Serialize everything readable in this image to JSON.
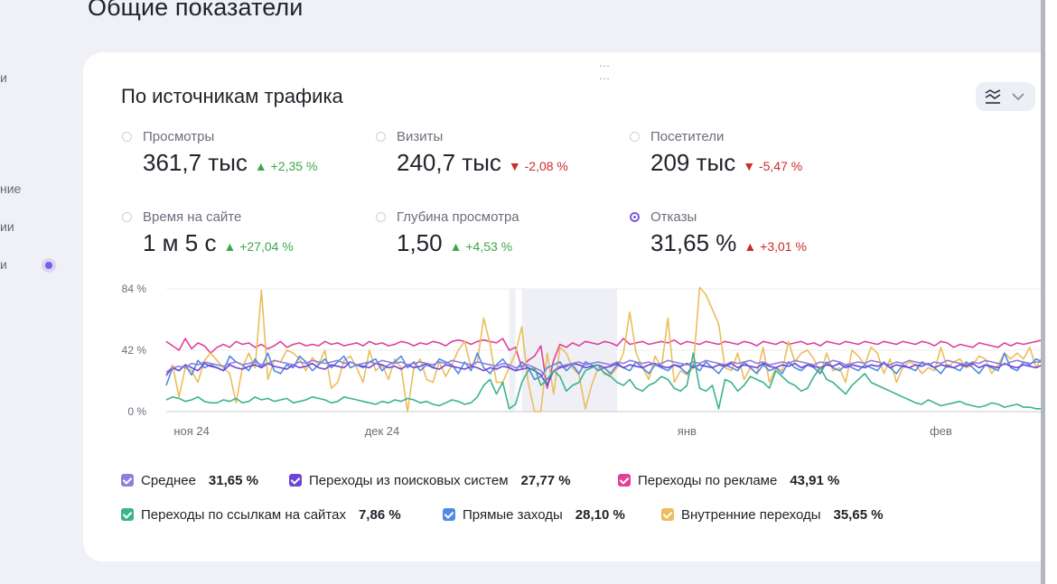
{
  "page": {
    "title": "Общие показатели"
  },
  "sidebar_fragments": [
    "и",
    "ние",
    "ии",
    "и"
  ],
  "widget": {
    "title": "По источникам трафика"
  },
  "metrics": [
    {
      "label": "Просмотры",
      "value": "361,7 тыс",
      "delta": "▲ +2,35 %",
      "trend": "up",
      "selected": false
    },
    {
      "label": "Визиты",
      "value": "240,7 тыс",
      "delta": "▼ -2,08 %",
      "trend": "down",
      "selected": false
    },
    {
      "label": "Посетители",
      "value": "209 тыс",
      "delta": "▼ -5,47 %",
      "trend": "down",
      "selected": false
    },
    {
      "label": "Время на сайте",
      "value": "1 м 5 с",
      "delta": "▲ +27,04 %",
      "trend": "up",
      "selected": false
    },
    {
      "label": "Глубина просмотра",
      "value": "1,50",
      "delta": "▲ +4,53 %",
      "trend": "up",
      "selected": false
    },
    {
      "label": "Отказы",
      "value": "31,65 %",
      "delta": "▲ +3,01 %",
      "trend": "up-bad",
      "selected": true
    }
  ],
  "colors": {
    "up": "#3aa84a",
    "down": "#cc2b2b",
    "accent": "#7b5ce6"
  },
  "legend": [
    {
      "label": "Среднее",
      "value": "31,65 %",
      "color": "#8f7fd9"
    },
    {
      "label": "Переходы из поисковых систем",
      "value": "27,77 %",
      "color": "#6e44d6"
    },
    {
      "label": "Переходы по рекламе",
      "value": "43,91 %",
      "color": "#e0409a"
    },
    {
      "label": "Переходы по ссылкам на сайтах",
      "value": "7,86 %",
      "color": "#3bb38c"
    },
    {
      "label": "Прямые заходы",
      "value": "28,10 %",
      "color": "#4f8ae6"
    },
    {
      "label": "Внутренние переходы",
      "value": "35,65 %",
      "color": "#ecbd5c"
    }
  ],
  "chart_data": {
    "type": "line",
    "y_ticks": [
      "84 %",
      "42 %",
      "0 %"
    ],
    "ylim": [
      0,
      84
    ],
    "x_ticks": [
      {
        "label": "ноя 24",
        "day": 4
      },
      {
        "label": "дек 24",
        "day": 34
      },
      {
        "label": "янв",
        "day": 82
      },
      {
        "label": "фев",
        "day": 122
      }
    ],
    "x_range": [
      0,
      139
    ],
    "highlight_ranges": [
      [
        54,
        55
      ],
      [
        56,
        71
      ]
    ],
    "series": [
      {
        "name": "Переходы по рекламе",
        "color": "#e0409a",
        "values": [
          48,
          45,
          42,
          50,
          43,
          47,
          45,
          40,
          44,
          46,
          44,
          48,
          46,
          47,
          44,
          46,
          43,
          45,
          48,
          44,
          46,
          47,
          45,
          46,
          45,
          48,
          46,
          47,
          45,
          46,
          47,
          45,
          48,
          46,
          47,
          45,
          46,
          48,
          47,
          45,
          47,
          46,
          48,
          47,
          45,
          48,
          49,
          48,
          46,
          48,
          49,
          48,
          47,
          50,
          42,
          44,
          30,
          35,
          38,
          45,
          16,
          35,
          46,
          44,
          47,
          45,
          48,
          47,
          46,
          48,
          47,
          45,
          50,
          46,
          47,
          48,
          46,
          47,
          48,
          47,
          49,
          46,
          48,
          47,
          46,
          48,
          47,
          46,
          48,
          47,
          46,
          48,
          47,
          45,
          48,
          47,
          46,
          48,
          46,
          47,
          48,
          46,
          47,
          45,
          48,
          47,
          46,
          48,
          47,
          46,
          48,
          47,
          46,
          48,
          47,
          46,
          48,
          47,
          46,
          48,
          47,
          45,
          48,
          47,
          44,
          46,
          45,
          44,
          47,
          46,
          45,
          44,
          47,
          45,
          47,
          46,
          47,
          48,
          49,
          50
        ]
      },
      {
        "name": "Внутренние переходы",
        "color": "#ecbd5c",
        "values": [
          24,
          32,
          10,
          30,
          28,
          20,
          35,
          40,
          35,
          30,
          26,
          6,
          30,
          40,
          30,
          83,
          22,
          35,
          34,
          42,
          40,
          36,
          28,
          37,
          32,
          42,
          16,
          20,
          35,
          38,
          30,
          20,
          42,
          28,
          32,
          22,
          36,
          30,
          0,
          30,
          36,
          22,
          20,
          34,
          24,
          32,
          42,
          48,
          30,
          34,
          64,
          46,
          20,
          20,
          30,
          40,
          58,
          20,
          0,
          0,
          40,
          12,
          44,
          40,
          30,
          25,
          2,
          18,
          30,
          27,
          25,
          30,
          40,
          68,
          40,
          30,
          22,
          38,
          30,
          64,
          20,
          28,
          25,
          30,
          85,
          80,
          70,
          60,
          30,
          28,
          40,
          22,
          30,
          26,
          44,
          20,
          30,
          28,
          48,
          34,
          40,
          42,
          36,
          26,
          40,
          28,
          30,
          20,
          42,
          38,
          32,
          44,
          40,
          26,
          36,
          20,
          30,
          34,
          32,
          26,
          30,
          28,
          44,
          30,
          34,
          36,
          30,
          32,
          38,
          36,
          26,
          32,
          40,
          36,
          40,
          36,
          44,
          30,
          38,
          68
        ]
      },
      {
        "name": "Прямые заходы",
        "color": "#4f8ae6",
        "values": [
          18,
          30,
          28,
          32,
          25,
          35,
          30,
          32,
          30,
          28,
          38,
          34,
          32,
          28,
          36,
          30,
          40,
          28,
          26,
          32,
          30,
          38,
          34,
          28,
          32,
          36,
          30,
          34,
          38,
          30,
          32,
          30,
          34,
          36,
          28,
          32,
          34,
          38,
          30,
          34,
          28,
          32,
          30,
          36,
          34,
          32,
          26,
          34,
          28,
          40,
          30,
          26,
          32,
          36,
          30,
          28,
          34,
          30,
          22,
          24,
          30,
          32,
          34,
          28,
          32,
          26,
          34,
          32,
          28,
          30,
          26,
          32,
          30,
          28,
          34,
          30,
          26,
          32,
          30,
          28,
          32,
          30,
          26,
          32,
          28,
          34,
          30,
          26,
          32,
          30,
          28,
          34,
          30,
          26,
          32,
          28,
          30,
          26,
          34,
          30,
          28,
          32,
          30,
          26,
          34,
          30,
          28,
          32,
          30,
          28,
          32,
          30,
          28,
          34,
          30,
          26,
          32,
          30,
          28,
          34,
          32,
          30,
          26,
          32,
          30,
          28,
          34,
          30,
          26,
          32,
          30,
          28,
          40,
          30,
          28,
          34,
          32,
          36,
          34,
          40
        ]
      },
      {
        "name": "Переходы из поисковых систем",
        "color": "#6e44d6",
        "values": [
          25,
          30,
          28,
          32,
          30,
          28,
          33,
          31,
          30,
          28,
          32,
          30,
          29,
          31,
          32,
          30,
          33,
          31,
          30,
          29,
          32,
          30,
          31,
          33,
          30,
          29,
          32,
          31,
          30,
          34,
          32,
          31,
          30,
          33,
          32,
          30,
          31,
          29,
          32,
          30,
          31,
          33,
          30,
          29,
          32,
          31,
          30,
          29,
          31,
          30,
          28,
          30,
          29,
          31,
          30,
          28,
          29,
          30,
          28,
          25,
          18,
          28,
          30,
          31,
          33,
          32,
          30,
          31,
          32,
          30,
          31,
          33,
          30,
          32,
          31,
          30,
          32,
          33,
          31,
          30,
          32,
          31,
          33,
          30,
          32,
          31,
          30,
          32,
          31,
          33,
          30,
          32,
          31,
          30,
          33,
          31,
          30,
          32,
          31,
          33,
          30,
          32,
          31,
          30,
          32,
          31,
          33,
          30,
          32,
          31,
          30,
          32,
          31,
          33,
          30,
          32,
          31,
          30,
          32,
          31,
          33,
          30,
          32,
          31,
          30,
          32,
          31,
          33,
          30,
          32,
          31,
          30,
          33,
          31,
          30,
          32,
          31,
          30,
          32,
          30
        ]
      },
      {
        "name": "Среднее",
        "color": "#8f7fd9",
        "values": [
          27,
          30,
          31,
          30,
          33,
          32,
          34,
          33,
          32,
          31,
          33,
          34,
          32,
          33,
          34,
          32,
          33,
          35,
          34,
          33,
          32,
          34,
          33,
          35,
          34,
          33,
          34,
          35,
          33,
          34,
          32,
          33,
          34,
          33,
          35,
          34,
          33,
          34,
          32,
          33,
          34,
          33,
          32,
          34,
          33,
          35,
          34,
          33,
          32,
          34,
          33,
          32,
          31,
          33,
          32,
          30,
          31,
          32,
          30,
          28,
          22,
          28,
          31,
          32,
          33,
          34,
          32,
          33,
          34,
          33,
          32,
          34,
          33,
          35,
          34,
          33,
          34,
          32,
          33,
          35,
          34,
          33,
          32,
          34,
          33,
          35,
          34,
          33,
          32,
          34,
          33,
          34,
          35,
          33,
          34,
          32,
          33,
          34,
          33,
          35,
          34,
          33,
          32,
          34,
          33,
          35,
          34,
          32,
          33,
          34,
          33,
          35,
          34,
          33,
          32,
          34,
          33,
          35,
          34,
          33,
          32,
          34,
          33,
          35,
          34,
          33,
          32,
          34,
          33,
          35,
          34,
          33,
          32,
          34,
          35,
          34,
          33,
          34,
          34,
          35
        ]
      },
      {
        "name": "Переходы по ссылкам на сайтах",
        "color": "#3bb38c",
        "values": [
          8,
          10,
          9,
          7,
          8,
          10,
          7,
          6,
          6,
          8,
          7,
          9,
          6,
          7,
          10,
          8,
          9,
          7,
          8,
          9,
          6,
          7,
          8,
          10,
          9,
          8,
          6,
          7,
          10,
          9,
          8,
          7,
          6,
          5,
          7,
          6,
          8,
          7,
          9,
          8,
          6,
          7,
          5,
          4,
          6,
          8,
          7,
          5,
          6,
          10,
          18,
          22,
          12,
          20,
          2,
          5,
          20,
          28,
          30,
          18,
          22,
          28,
          24,
          14,
          18,
          20,
          28,
          30,
          32,
          26,
          24,
          20,
          18,
          22,
          16,
          14,
          18,
          20,
          24,
          22,
          16,
          14,
          18,
          40,
          16,
          14,
          18,
          2,
          22,
          20,
          14,
          18,
          24,
          22,
          20,
          16,
          28,
          24,
          20,
          18,
          14,
          16,
          24,
          30,
          22,
          20,
          16,
          12,
          18,
          22,
          26,
          20,
          18,
          16,
          14,
          12,
          10,
          8,
          6,
          5,
          8,
          6,
          4,
          5,
          6,
          7,
          5,
          4,
          3,
          4,
          6,
          5,
          3,
          4,
          5,
          3,
          3,
          2,
          2,
          2
        ]
      }
    ]
  }
}
